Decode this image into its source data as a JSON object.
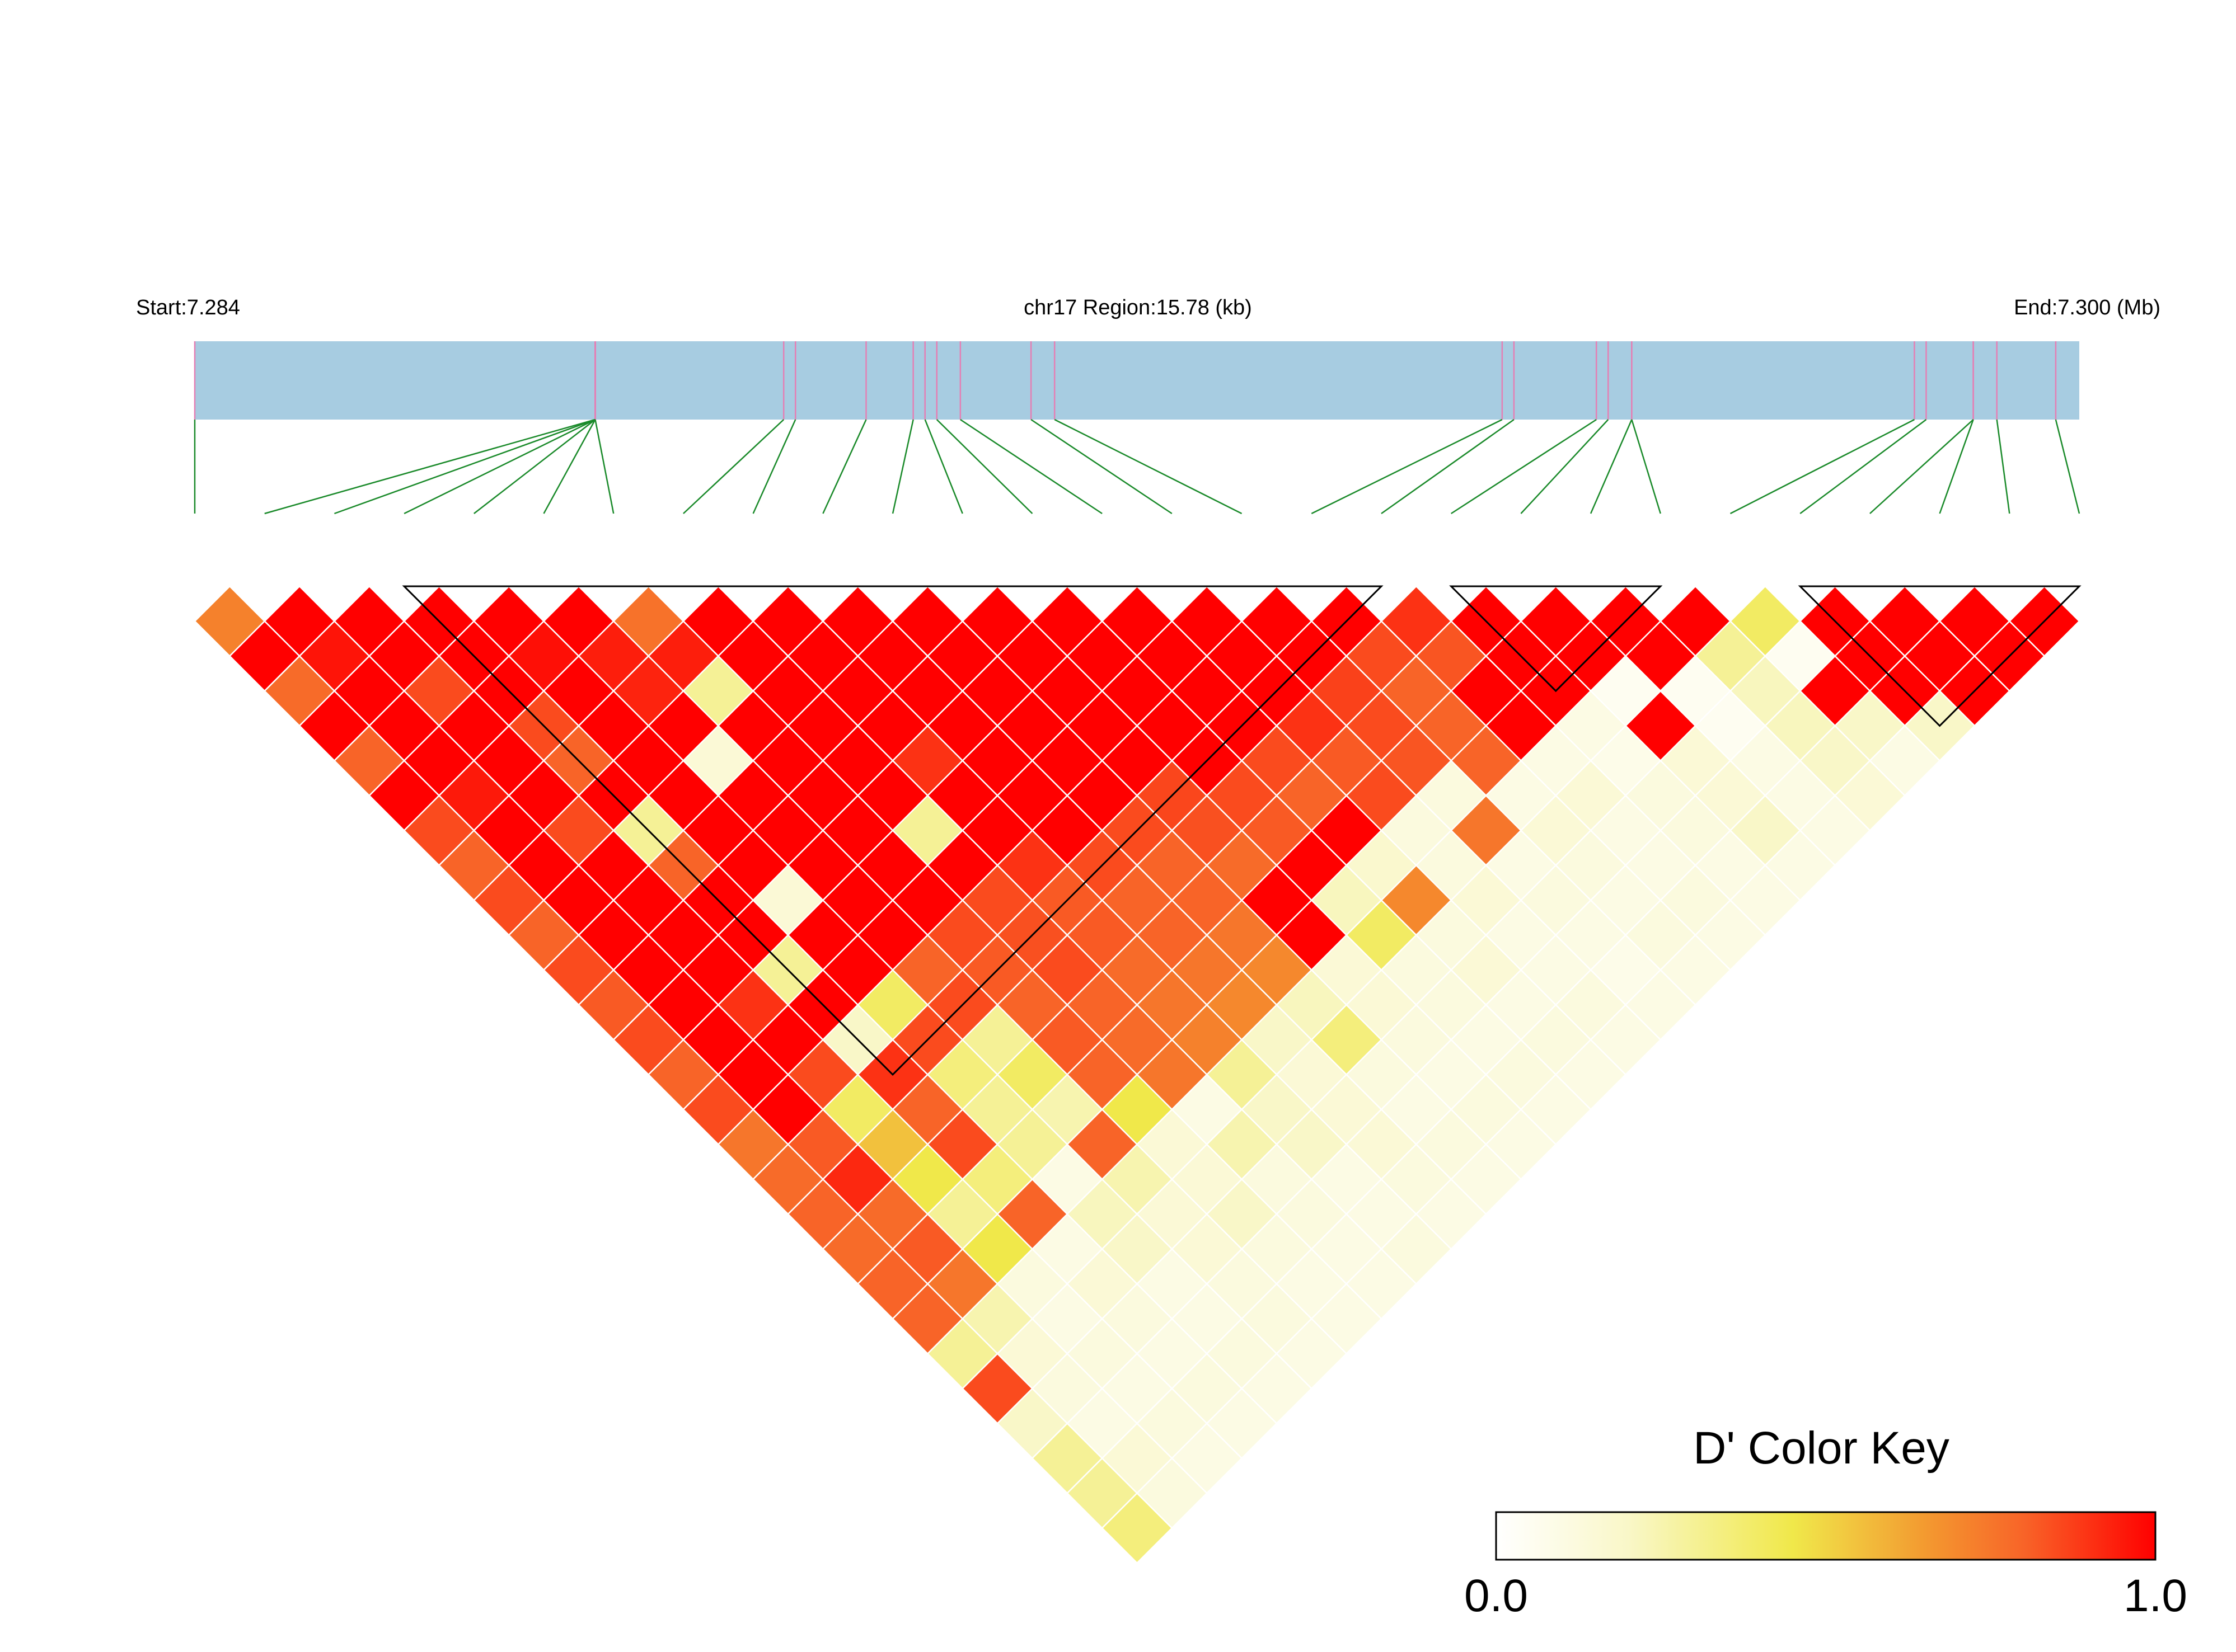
{
  "chart_data": {
    "type": "heatmap",
    "subtype": "ld-triangle",
    "header": {
      "start_label": "Start:7.284",
      "region_label": "chr17 Region:15.78 (kb)",
      "end_label": "End:7.300 (Mb)"
    },
    "region": {
      "start_mb": 7.284,
      "end_mb": 7.3
    },
    "snp_count": 28,
    "snp_positions_mb": [
      7.284,
      7.2874,
      7.2874,
      7.2874,
      7.2874,
      7.2874,
      7.2874,
      7.289,
      7.2891,
      7.2897,
      7.2901,
      7.2902,
      7.2903,
      7.2905,
      7.2911,
      7.2913,
      7.2951,
      7.2952,
      7.2959,
      7.296,
      7.2962,
      7.2962,
      7.2986,
      7.2987,
      7.2991,
      7.2991,
      7.2993,
      7.2998
    ],
    "d_prime_by_distance": [
      [
        0.72,
        1.0,
        1.0,
        1.0,
        1.0,
        1.0,
        0.76,
        1.0,
        1.0,
        1.0,
        1.0,
        1.0,
        1.0,
        1.0,
        1.0,
        1.0,
        1.0,
        0.9,
        1.0,
        1.0,
        1.0,
        1.0,
        0.4,
        1.0,
        1.0,
        1.0,
        1.0
      ],
      [
        1.0,
        0.96,
        1.0,
        1.0,
        0.97,
        0.94,
        0.94,
        1.0,
        1.0,
        1.0,
        1.0,
        1.0,
        1.0,
        1.0,
        1.0,
        1.0,
        0.85,
        0.83,
        1.0,
        1.0,
        1.0,
        0.3,
        0.05,
        1.0,
        1.0,
        1.0
      ],
      [
        0.78,
        1.0,
        0.85,
        1.0,
        1.0,
        0.93,
        0.3,
        1.0,
        1.0,
        1.0,
        1.0,
        1.0,
        1.0,
        1.0,
        1.0,
        0.87,
        0.8,
        1.0,
        1.0,
        0.05,
        0.05,
        0.22,
        1.0,
        1.0,
        1.0
      ],
      [
        1.0,
        1.0,
        1.0,
        0.85,
        1.0,
        1.0,
        1.0,
        1.0,
        1.0,
        1.0,
        1.0,
        1.0,
        1.0,
        1.0,
        0.9,
        0.85,
        0.8,
        1.0,
        0.1,
        1.0,
        0.05,
        0.22,
        0.2,
        0.2
      ],
      [
        0.8,
        1.0,
        1.0,
        0.8,
        1.0,
        0.15,
        1.0,
        1.0,
        0.9,
        1.0,
        1.0,
        1.0,
        1.0,
        0.85,
        0.82,
        0.83,
        0.8,
        0.1,
        0.08,
        0.15,
        0.1,
        0.2,
        0.1
      ],
      [
        1.0,
        0.95,
        1.0,
        1.0,
        1.0,
        1.0,
        1.0,
        1.0,
        1.0,
        1.0,
        1.0,
        0.86,
        0.85,
        0.8,
        0.85,
        0.12,
        0.1,
        0.15,
        0.12,
        0.15,
        0.1,
        0.15
      ],
      [
        0.85,
        1.0,
        0.85,
        0.3,
        1.0,
        1.0,
        1.0,
        0.3,
        1.0,
        1.0,
        0.85,
        0.84,
        0.82,
        1.0,
        0.12,
        0.75,
        0.15,
        0.1,
        0.12,
        0.2,
        0.1
      ],
      [
        0.8,
        1.0,
        1.0,
        0.8,
        1.0,
        1.0,
        1.0,
        1.0,
        0.9,
        0.85,
        0.8,
        0.78,
        1.0,
        0.18,
        0.12,
        0.1,
        0.12,
        0.1,
        0.1,
        0.1
      ],
      [
        0.85,
        1.0,
        1.0,
        1.0,
        0.15,
        1.0,
        1.0,
        0.85,
        0.82,
        0.8,
        0.8,
        1.0,
        0.22,
        0.7,
        0.15,
        0.12,
        0.1,
        0.12,
        0.1
      ],
      [
        0.8,
        1.0,
        1.0,
        1.0,
        1.0,
        1.0,
        0.85,
        0.84,
        0.82,
        0.8,
        0.75,
        1.0,
        0.4,
        0.12,
        0.1,
        0.1,
        0.12,
        0.1
      ],
      [
        0.85,
        1.0,
        1.0,
        0.3,
        1.0,
        0.8,
        0.82,
        0.85,
        0.78,
        0.75,
        0.7,
        0.15,
        0.12,
        0.15,
        0.1,
        0.08,
        0.1
      ],
      [
        0.82,
        1.0,
        0.9,
        1.0,
        0.4,
        0.85,
        0.8,
        0.8,
        0.75,
        0.7,
        0.22,
        0.15,
        0.12,
        0.1,
        0.12,
        0.1
      ],
      [
        0.85,
        1.0,
        1.0,
        0.2,
        0.85,
        0.3,
        0.82,
        0.78,
        0.72,
        0.2,
        0.35,
        0.12,
        0.1,
        0.12,
        0.1
      ],
      [
        0.8,
        1.0,
        0.85,
        0.9,
        0.35,
        0.4,
        0.8,
        0.75,
        0.3,
        0.15,
        0.12,
        0.1,
        0.12,
        0.1
      ],
      [
        0.85,
        1.0,
        0.4,
        0.8,
        0.3,
        0.25,
        0.45,
        0.1,
        0.2,
        0.15,
        0.1,
        0.12,
        0.1
      ],
      [
        0.75,
        0.82,
        0.55,
        0.85,
        0.3,
        0.8,
        0.15,
        0.25,
        0.2,
        0.15,
        0.12,
        0.1
      ],
      [
        0.78,
        0.92,
        0.45,
        0.35,
        0.1,
        0.25,
        0.15,
        0.12,
        0.1,
        0.12,
        0.1
      ],
      [
        0.8,
        0.78,
        0.3,
        0.8,
        0.22,
        0.15,
        0.2,
        0.12,
        0.1,
        0.1
      ],
      [
        0.78,
        0.82,
        0.45,
        0.1,
        0.2,
        0.15,
        0.12,
        0.1,
        0.12
      ],
      [
        0.8,
        0.75,
        0.12,
        0.15,
        0.1,
        0.12,
        0.1,
        0.1
      ],
      [
        0.8,
        0.25,
        0.1,
        0.12,
        0.1,
        0.12,
        0.1
      ],
      [
        0.3,
        0.15,
        0.12,
        0.1,
        0.12,
        0.1
      ],
      [
        0.85,
        0.12,
        0.1,
        0.12,
        0.1
      ],
      [
        0.2,
        0.1,
        0.12,
        0.1
      ],
      [
        0.3,
        0.15,
        0.1
      ],
      [
        0.3,
        0.12
      ],
      [
        0.35
      ]
    ],
    "haplotype_blocks": [
      [
        3,
        17
      ],
      [
        18,
        21
      ],
      [
        23,
        27
      ]
    ],
    "legend": {
      "title": "D' Color Key",
      "min_label": "0.0",
      "max_label": "1.0",
      "placement": "bottom-right"
    },
    "colors": {
      "region_bar": "#a7cce1",
      "snp_tick": "#e57fb4",
      "snp_connector": "#1a8a2a",
      "cell_border": "#ffffff",
      "block_outline": "#000000",
      "scale": [
        "#ffffff",
        "#f9f7c8",
        "#f0e84a",
        "#f39a30",
        "#f86428",
        "#ff0000"
      ]
    }
  }
}
